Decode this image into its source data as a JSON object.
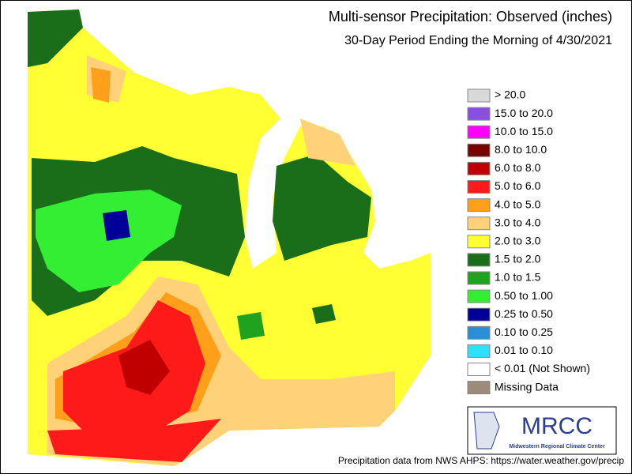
{
  "header": {
    "title": "Multi-sensor Precipitation: Observed (inches)",
    "subtitle": "30-Day Period Ending the Morning of 4/30/2021"
  },
  "legend": {
    "items": [
      {
        "label": "> 20.0",
        "color": "#d9d9d9"
      },
      {
        "label": "15.0 to 20.0",
        "color": "#8a4fdf"
      },
      {
        "label": "10.0 to 15.0",
        "color": "#ff00ff"
      },
      {
        "label": "8.0 to 10.0",
        "color": "#7a0000"
      },
      {
        "label": "6.0 to 8.0",
        "color": "#c00000"
      },
      {
        "label": "5.0 to 6.0",
        "color": "#ff1a1a"
      },
      {
        "label": "4.0 to 5.0",
        "color": "#ff9f1a"
      },
      {
        "label": "3.0 to 4.0",
        "color": "#ffd27a"
      },
      {
        "label": "2.0 to 3.0",
        "color": "#ffff33"
      },
      {
        "label": "1.5 to 2.0",
        "color": "#1a6e1a"
      },
      {
        "label": "1.0 to 1.5",
        "color": "#1fa31f"
      },
      {
        "label": "0.50 to 1.00",
        "color": "#33ee33"
      },
      {
        "label": "0.25 to 0.50",
        "color": "#000099"
      },
      {
        "label": "0.10 to 0.25",
        "color": "#2a8fd6"
      },
      {
        "label": "0.01 to 0.10",
        "color": "#2de0ff"
      },
      {
        "label": "< 0.01 (Not Shown)",
        "color": "#ffffff"
      },
      {
        "label": "Missing Data",
        "color": "#9c8b7a"
      }
    ]
  },
  "logo": {
    "name": "MRCC",
    "caption": "Midwestern Regional Climate Center"
  },
  "footer": "Precipitation data from NWS AHPS: https://water.weather.gov/precip"
}
